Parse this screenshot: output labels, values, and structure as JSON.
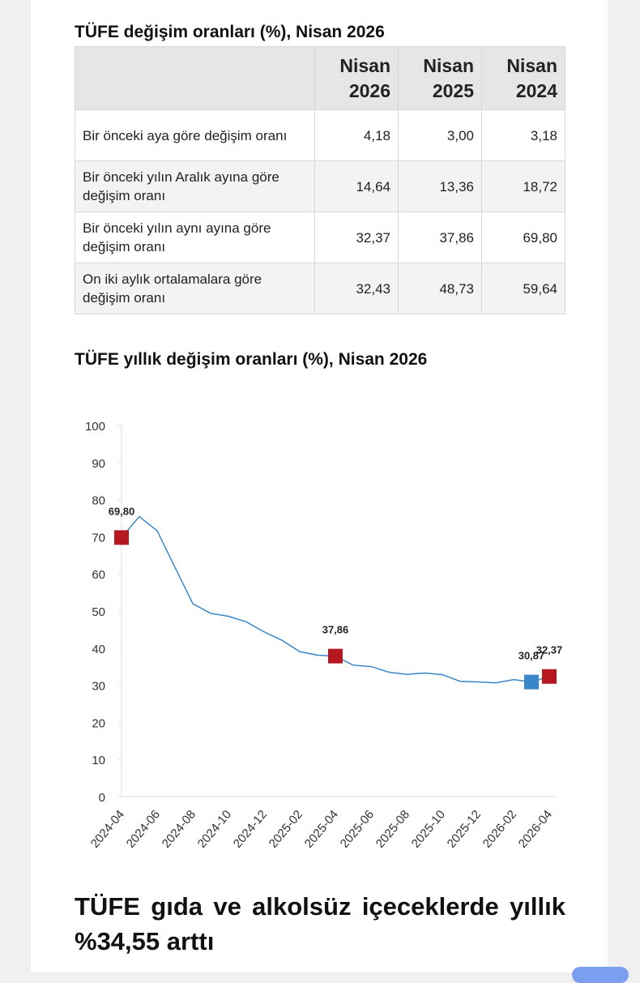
{
  "table": {
    "title": "TÜFE değişim oranları (%), Nisan 2026",
    "columns": [
      "Nisan 2026",
      "Nisan 2025",
      "Nisan 2024"
    ],
    "rows": [
      [
        "Bir önceki aya göre değişim oranı",
        "4,18",
        "3,00",
        "3,18"
      ],
      [
        "Bir önceki yılın Aralık ayına göre değişim oranı",
        "14,64",
        "13,36",
        "18,72"
      ],
      [
        "Bir önceki yılın aynı ayına göre değişim oranı",
        "32,37",
        "37,86",
        "69,80"
      ],
      [
        "On iki aylık ortalamalara göre değişim oranı",
        "32,43",
        "48,73",
        "59,64"
      ]
    ]
  },
  "chart_data": {
    "type": "line",
    "title": "TÜFE yıllık değişim oranları (%), Nisan 2026",
    "categories": [
      "2024-04",
      null,
      "2024-06",
      null,
      "2024-08",
      null,
      "2024-10",
      null,
      "2024-12",
      null,
      "2025-02",
      null,
      "2025-04",
      null,
      "2025-06",
      null,
      "2025-08",
      null,
      "2025-10",
      null,
      "2025-12",
      null,
      "2026-02",
      null,
      "2026-04"
    ],
    "values": [
      69.8,
      75.45,
      71.6,
      61.78,
      51.97,
      49.38,
      48.58,
      47.09,
      44.38,
      42.12,
      39.05,
      38.1,
      37.86,
      35.41,
      35.05,
      33.52,
      32.95,
      33.29,
      32.87,
      31.07,
      30.89,
      30.65,
      31.53,
      30.87,
      32.37
    ],
    "value_labels": [
      "69,80",
      null,
      null,
      null,
      null,
      null,
      null,
      null,
      null,
      null,
      null,
      null,
      "37,86",
      null,
      null,
      null,
      null,
      null,
      null,
      null,
      null,
      null,
      null,
      "30,87",
      "32,37"
    ],
    "marker_colors": [
      "#b5181f",
      null,
      null,
      null,
      null,
      null,
      null,
      null,
      null,
      null,
      null,
      null,
      "#b5181f",
      null,
      null,
      null,
      null,
      null,
      null,
      null,
      null,
      null,
      null,
      "#3a86c8",
      "#b5181f"
    ],
    "color": "#3a86c8",
    "ylim": [
      0,
      100
    ],
    "yticks": [
      0,
      10,
      20,
      30,
      40,
      50,
      60,
      70,
      80,
      90,
      100
    ]
  },
  "heading": "TÜFE gıda ve alkolsüz içeceklerde yıllık %34,55 arttı"
}
